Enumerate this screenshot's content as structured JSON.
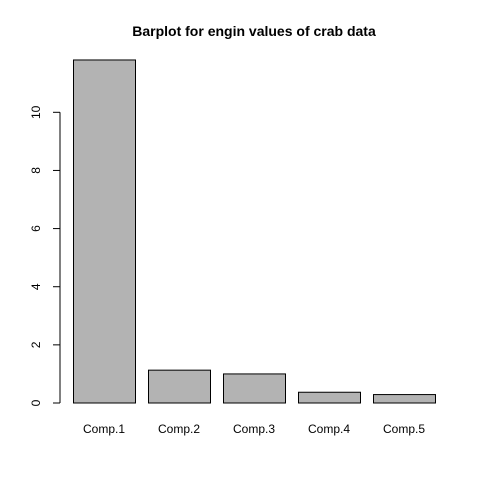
{
  "chart_data": {
    "type": "bar",
    "title": "Barplot for engin values of crab data",
    "categories": [
      "Comp.1",
      "Comp.2",
      "Comp.3",
      "Comp.4",
      "Comp.5"
    ],
    "values": [
      11.8,
      1.13,
      1.0,
      0.37,
      0.29
    ],
    "xlabel": "",
    "ylabel": "",
    "ylim": [
      0,
      12
    ],
    "yticks": [
      0,
      2,
      4,
      6,
      8,
      10
    ],
    "grid": false,
    "legend": "none",
    "bar_color": "#b3b3b3",
    "bar_border_color": "#000000"
  }
}
